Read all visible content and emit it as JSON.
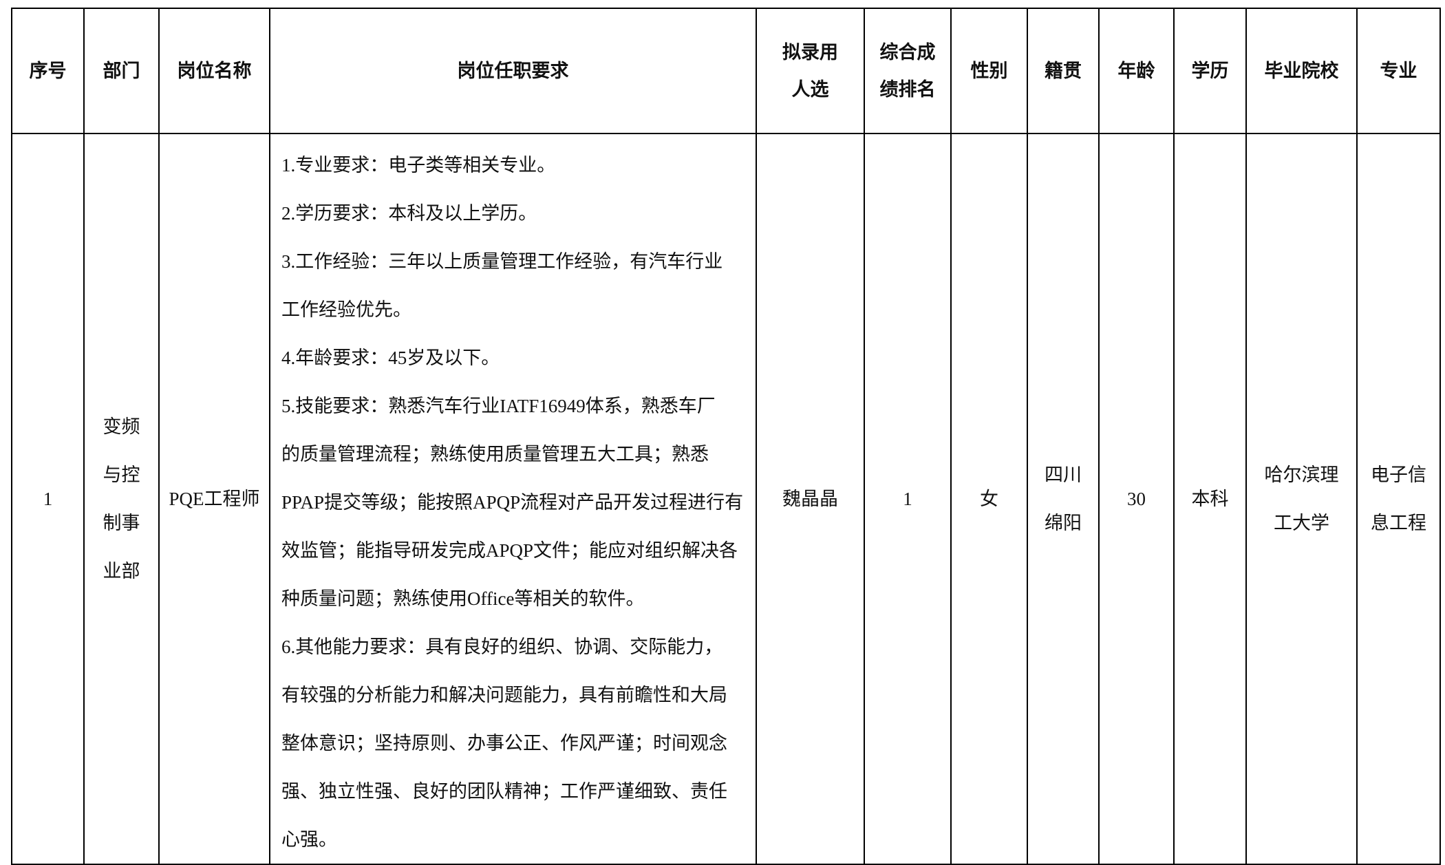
{
  "headers": [
    "序号",
    "部门",
    "岗位名称",
    "岗位任职要求",
    "拟录用\n人选",
    "综合成\n绩排名",
    "性别",
    "籍贯",
    "年龄",
    "学历",
    "毕业院校",
    "专业"
  ],
  "header_lines": {
    "candidate": [
      "拟录用",
      "人选"
    ],
    "rank": [
      "综合成",
      "绩排名"
    ]
  },
  "row": {
    "index": "1",
    "department_lines": [
      "变频",
      "与控",
      "制事",
      "业部"
    ],
    "position": "PQE工程师",
    "requirements_lines": [
      "1.专业要求：电子类等相关专业。",
      "2.学历要求：本科及以上学历。",
      "3.工作经验：三年以上质量管理工作经验，有汽车行业",
      "工作经验优先。",
      "4.年龄要求：45岁及以下。",
      "5.技能要求：熟悉汽车行业IATF16949体系，熟悉车厂",
      "的质量管理流程；熟练使用质量管理五大工具；熟悉",
      "PPAP提交等级；能按照APQP流程对产品开发过程进行有",
      "效监管；能指导研发完成APQP文件；能应对组织解决各",
      "种质量问题；熟练使用Office等相关的软件。",
      "6.其他能力要求：具有良好的组织、协调、交际能力，",
      "有较强的分析能力和解决问题能力，具有前瞻性和大局",
      "整体意识；坚持原则、办事公正、作风严谨；时间观念",
      "强、独立性强、良好的团队精神；工作严谨细致、责任",
      "心强。"
    ],
    "candidate": "魏晶晶",
    "rank": "1",
    "gender": "女",
    "hometown_lines": [
      "四川",
      "绵阳"
    ],
    "age": "30",
    "education": "本科",
    "school_lines": [
      "哈尔滨理",
      "工大学"
    ],
    "major_lines": [
      "电子信",
      "息工程"
    ]
  }
}
